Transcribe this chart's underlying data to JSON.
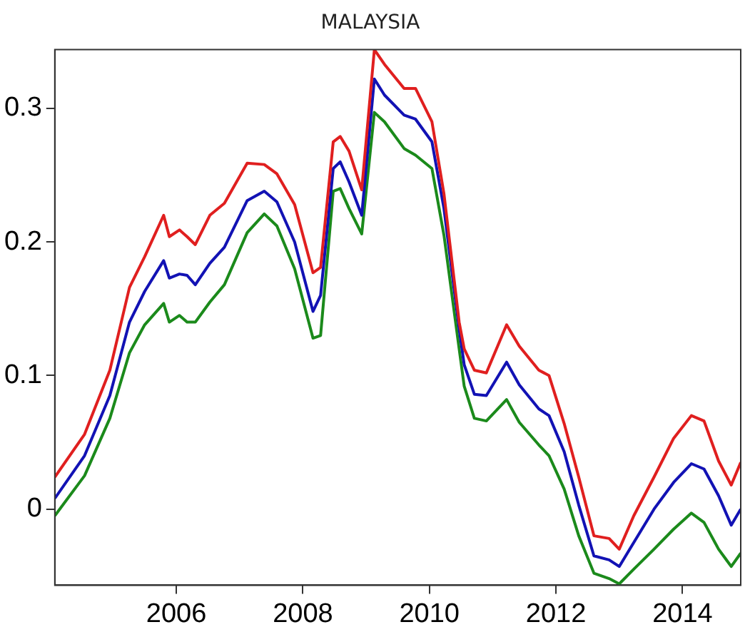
{
  "chart_data": {
    "type": "line",
    "title": "MALAYSIA",
    "x": [
      2004.08,
      2004.55,
      2004.95,
      2005.26,
      2005.5,
      2005.8,
      2005.89,
      2006.05,
      2006.17,
      2006.3,
      2006.53,
      2006.76,
      2007.12,
      2007.39,
      2007.59,
      2007.87,
      2008.16,
      2008.28,
      2008.48,
      2008.59,
      2008.73,
      2008.93,
      2009.13,
      2009.29,
      2009.6,
      2009.78,
      2010.04,
      2010.23,
      2010.47,
      2010.55,
      2010.71,
      2010.9,
      2011.22,
      2011.42,
      2011.73,
      2011.89,
      2012.13,
      2012.36,
      2012.6,
      2012.84,
      2013.0,
      2013.23,
      2013.55,
      2013.86,
      2014.14,
      2014.34,
      2014.57,
      2014.77,
      2014.92
    ],
    "series": [
      {
        "color": "#e01f1f",
        "values": [
          0.024,
          0.056,
          0.104,
          0.166,
          0.189,
          0.22,
          0.204,
          0.209,
          0.204,
          0.198,
          0.22,
          0.229,
          0.259,
          0.258,
          0.251,
          0.228,
          0.177,
          0.181,
          0.275,
          0.279,
          0.268,
          0.239,
          0.344,
          0.333,
          0.315,
          0.315,
          0.29,
          0.236,
          0.14,
          0.12,
          0.104,
          0.102,
          0.138,
          0.122,
          0.104,
          0.1,
          0.064,
          0.024,
          -0.02,
          -0.022,
          -0.03,
          -0.005,
          0.024,
          0.053,
          0.07,
          0.066,
          0.036,
          0.018,
          0.035
        ]
      },
      {
        "color": "#1212b4",
        "values": [
          0.008,
          0.04,
          0.085,
          0.14,
          0.163,
          0.186,
          0.173,
          0.176,
          0.175,
          0.168,
          0.184,
          0.196,
          0.231,
          0.238,
          0.23,
          0.2,
          0.148,
          0.16,
          0.255,
          0.26,
          0.245,
          0.22,
          0.322,
          0.31,
          0.295,
          0.292,
          0.275,
          0.225,
          0.135,
          0.108,
          0.086,
          0.085,
          0.11,
          0.093,
          0.075,
          0.07,
          0.043,
          0.003,
          -0.035,
          -0.038,
          -0.043,
          -0.025,
          0.0,
          0.02,
          0.034,
          0.03,
          0.01,
          -0.012,
          0.0
        ]
      },
      {
        "color": "#1b8a1b",
        "values": [
          -0.005,
          0.025,
          0.068,
          0.117,
          0.138,
          0.154,
          0.14,
          0.145,
          0.14,
          0.14,
          0.155,
          0.168,
          0.207,
          0.221,
          0.212,
          0.18,
          0.128,
          0.13,
          0.238,
          0.24,
          0.225,
          0.206,
          0.297,
          0.29,
          0.27,
          0.265,
          0.255,
          0.205,
          0.12,
          0.092,
          0.068,
          0.066,
          0.082,
          0.065,
          0.048,
          0.04,
          0.015,
          -0.02,
          -0.048,
          -0.052,
          -0.056,
          -0.045,
          -0.03,
          -0.015,
          -0.003,
          -0.01,
          -0.03,
          -0.043,
          -0.033
        ]
      }
    ],
    "xlim": [
      2004.08,
      2014.92
    ],
    "xticks": [
      2006,
      2008,
      2010,
      2012,
      2014
    ],
    "ylim": [
      -0.057,
      0.344
    ],
    "yticks": [
      0,
      0.1,
      0.2,
      0.3
    ],
    "grid": false,
    "legend": false,
    "marker": "none",
    "line_style": "solid"
  }
}
